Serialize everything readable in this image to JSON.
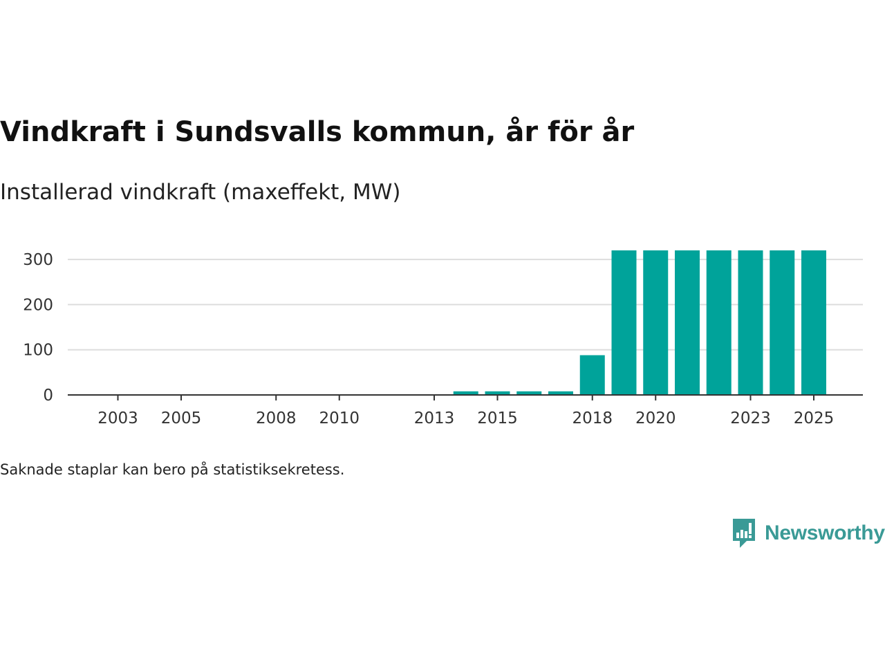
{
  "chart_data": {
    "type": "bar",
    "title": "Vindkraft i Sundsvalls kommun, år för år",
    "subtitle": "Installerad vindkraft (maxeffekt, MW)",
    "xlabel": "",
    "ylabel": "",
    "categories": [
      "2002",
      "2003",
      "2004",
      "2005",
      "2006",
      "2007",
      "2008",
      "2009",
      "2010",
      "2011",
      "2012",
      "2013",
      "2014",
      "2015",
      "2016",
      "2017",
      "2018",
      "2019",
      "2020",
      "2021",
      "2022",
      "2023",
      "2024",
      "2025"
    ],
    "values": [
      0,
      0,
      0,
      0,
      0,
      0,
      0,
      0,
      0,
      0,
      0,
      0,
      8,
      8,
      8,
      8,
      88,
      320,
      320,
      320,
      320,
      320,
      320,
      320
    ],
    "x_tick_labels": [
      "2003",
      "2005",
      "2008",
      "2010",
      "2013",
      "2015",
      "2018",
      "2020",
      "2023",
      "2025"
    ],
    "y_ticks": [
      0,
      100,
      200,
      300
    ],
    "y_tick_labels": [
      "0",
      "100",
      "200",
      "300"
    ],
    "ylim": [
      0,
      320
    ],
    "grid": true,
    "bar_color": "#00a39a"
  },
  "footer": {
    "note": "Saknade staplar kan bero på statistiksekretess."
  },
  "logo": {
    "text": "Newsworthy",
    "color": "#3a9a96"
  }
}
